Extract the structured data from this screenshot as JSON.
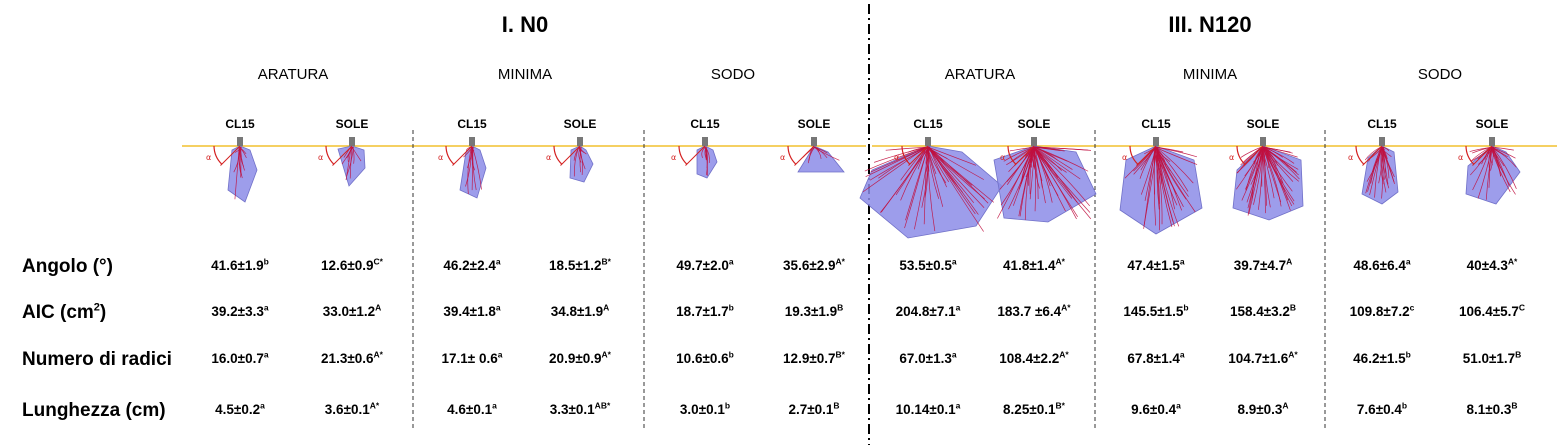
{
  "groups": [
    {
      "title": "I. N0",
      "systems": [
        "ARATURA",
        "MINIMA",
        "SODO"
      ]
    },
    {
      "title": "III. N120",
      "systems": [
        "ARATURA",
        "MINIMA",
        "SODO"
      ]
    }
  ],
  "cultivars": [
    "CL15",
    "SOLE",
    "CL15",
    "SOLE",
    "CL15",
    "SOLE",
    "CL15",
    "SOLE",
    "CL15",
    "SOLE",
    "CL15",
    "SOLE"
  ],
  "angle_marker": "α",
  "rows": [
    {
      "label": "Angolo (°)",
      "label_sup": "",
      "values": [
        {
          "v": "41.6±1.9",
          "s": "b"
        },
        {
          "v": "12.6±0.9",
          "s": "C*"
        },
        {
          "v": "46.2±2.4",
          "s": "a"
        },
        {
          "v": "18.5±1.2",
          "s": "B*"
        },
        {
          "v": "49.7±2.0",
          "s": "a"
        },
        {
          "v": "35.6±2.9",
          "s": "A*"
        },
        {
          "v": "53.5±0.5",
          "s": "a"
        },
        {
          "v": "41.8±1.4",
          "s": "A*"
        },
        {
          "v": "47.4±1.5",
          "s": "a"
        },
        {
          "v": "39.7±4.7",
          "s": "A"
        },
        {
          "v": "48.6±6.4",
          "s": "a"
        },
        {
          "v": "40±4.3",
          "s": "A*"
        }
      ]
    },
    {
      "label": "AIC (cm",
      "label_sup": "2",
      "label_end": ")",
      "values": [
        {
          "v": "39.2±3.3",
          "s": "a"
        },
        {
          "v": "33.0±1.2",
          "s": "A"
        },
        {
          "v": "39.4±1.8",
          "s": "a"
        },
        {
          "v": "34.8±1.9",
          "s": "A"
        },
        {
          "v": "18.7±1.7",
          "s": "b"
        },
        {
          "v": "19.3±1.9",
          "s": "B"
        },
        {
          "v": "204.8±7.1",
          "s": "a"
        },
        {
          "v": "183.7 ±6.4",
          "s": "A*"
        },
        {
          "v": "145.5±1.5",
          "s": "b"
        },
        {
          "v": "158.4±3.2",
          "s": "B"
        },
        {
          "v": "109.8±7.2",
          "s": "c"
        },
        {
          "v": "106.4±5.7",
          "s": "C"
        }
      ]
    },
    {
      "label": "Numero di radici",
      "label_sup": "",
      "label_end": "",
      "values": [
        {
          "v": "16.0±0.7",
          "s": "a"
        },
        {
          "v": "21.3±0.6",
          "s": "A*"
        },
        {
          "v": "17.1± 0.6",
          "s": "a"
        },
        {
          "v": "20.9±0.9",
          "s": "A*"
        },
        {
          "v": "10.6±0.6",
          "s": "b"
        },
        {
          "v": "12.9±0.7",
          "s": "B*"
        },
        {
          "v": "67.0±1.3",
          "s": "a"
        },
        {
          "v": "108.4±2.2",
          "s": "A*"
        },
        {
          "v": "67.8±1.4",
          "s": "a"
        },
        {
          "v": "104.7±1.6",
          "s": "A*"
        },
        {
          "v": "46.2±1.5",
          "s": "b"
        },
        {
          "v": "51.0±1.7",
          "s": "B"
        }
      ]
    },
    {
      "label": "Lunghezza (cm)",
      "label_sup": "",
      "label_end": "",
      "values": [
        {
          "v": "4.5±0.2",
          "s": "a"
        },
        {
          "v": "3.6±0.1",
          "s": "A*"
        },
        {
          "v": "4.6±0.1",
          "s": "a"
        },
        {
          "v": "3.3±0.1",
          "s": "AB*"
        },
        {
          "v": "3.0±0.1",
          "s": "b"
        },
        {
          "v": "2.7±0.1",
          "s": "B"
        },
        {
          "v": "10.14±0.1",
          "s": "a"
        },
        {
          "v": "8.25±0.1",
          "s": "B*"
        },
        {
          "v": "9.6±0.4",
          "s": "a"
        },
        {
          "v": "8.9±0.3",
          "s": "A"
        },
        {
          "v": "7.6±0.4",
          "s": "b"
        },
        {
          "v": "8.1±0.3",
          "s": "B"
        }
      ]
    }
  ],
  "colors": {
    "soil_line": "#f2c12e",
    "root_hull": "#8c8ce8",
    "roots": "#c0103f",
    "angle": "#d42020",
    "divider": "#000000"
  }
}
